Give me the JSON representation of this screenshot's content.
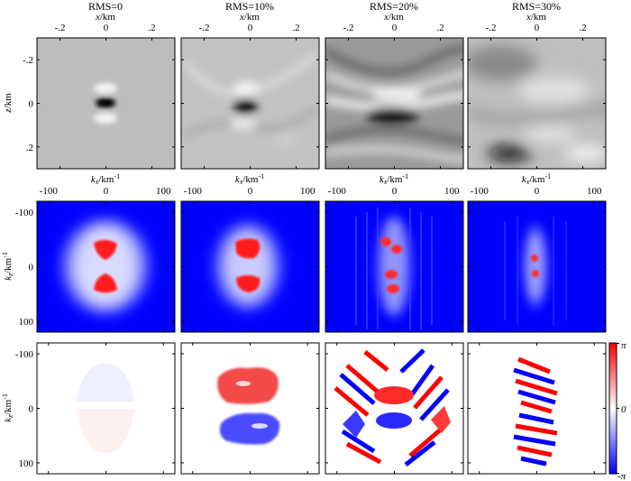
{
  "colors": {
    "gray_light": "#f2f2f2",
    "gray_mid": "#bdbdbd",
    "gray_dark": "#0a0a0a",
    "blue": "#0000ff",
    "white": "#ffffff",
    "red": "#ff0000"
  },
  "chart_data": [
    {
      "type": "heatmap",
      "row": "space",
      "xlabel": "x/km",
      "ylabel": "z/km",
      "xticks": [
        -0.2,
        0,
        0.2
      ],
      "yticks": [
        -0.2,
        0,
        0.2
      ],
      "xlim": [
        -0.3,
        0.3
      ],
      "ylim": [
        -0.3,
        0.3
      ],
      "colormap": "gray",
      "panels": [
        {
          "title": "RMS=0"
        },
        {
          "title": "RMS=10%"
        },
        {
          "title": "RMS=20%"
        },
        {
          "title": "RMS=30%"
        }
      ]
    },
    {
      "type": "heatmap",
      "row": "amplitude spectrum",
      "xlabel": "kx/km-1",
      "ylabel": "kz/km-1",
      "xticks": [
        -100,
        0,
        100
      ],
      "yticks": [
        -100,
        0,
        100
      ],
      "xlim": [
        -120,
        120
      ],
      "ylim": [
        -120,
        120
      ],
      "colormap": "blue-white-red"
    },
    {
      "type": "heatmap",
      "row": "phase spectrum",
      "ylabel": "kz/km-1",
      "yticks": [
        -100,
        0,
        100
      ],
      "xlim": [
        -120,
        120
      ],
      "ylim": [
        -120,
        120
      ],
      "colormap": "blue-white-red",
      "colorbar": {
        "ticks": [
          "π",
          "0",
          "-π"
        ],
        "range": [
          -3.1416,
          3.1416
        ]
      }
    }
  ],
  "labels": {
    "x_km_var": "x",
    "x_km_unit": "/km",
    "z_km_var": "z",
    "z_km_unit": "/km",
    "kx_var": "k",
    "kx_sub": "x",
    "kz_sub": "z",
    "k_unit": "/km",
    "k_exp": "-1",
    "cb_top": "π",
    "cb_mid": "0",
    "cb_bot": "-π"
  }
}
